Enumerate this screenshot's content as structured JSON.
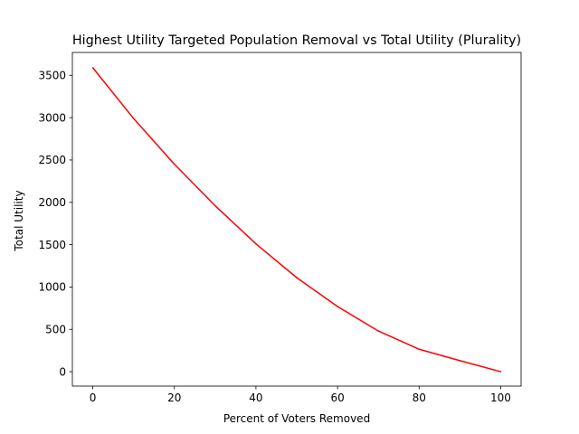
{
  "chart_data": {
    "type": "line",
    "title": "Highest Utility Targeted Population Removal vs Total Utility (Plurality)",
    "xlabel": "Percent of Voters Removed",
    "ylabel": "Total Utility",
    "xlim": [
      -5,
      105
    ],
    "ylim": [
      -170,
      3770
    ],
    "xticks": [
      0,
      20,
      40,
      60,
      80,
      100
    ],
    "yticks": [
      0,
      500,
      1000,
      1500,
      2000,
      2500,
      3000,
      3500
    ],
    "grid": false,
    "legend": "none",
    "series": [
      {
        "color": "#ff0000",
        "x": [
          0,
          10,
          20,
          30,
          40,
          50,
          60,
          70,
          80,
          90,
          100
        ],
        "y": [
          3590,
          2990,
          2450,
          1960,
          1510,
          1110,
          770,
          480,
          265,
          130,
          0
        ]
      }
    ]
  }
}
